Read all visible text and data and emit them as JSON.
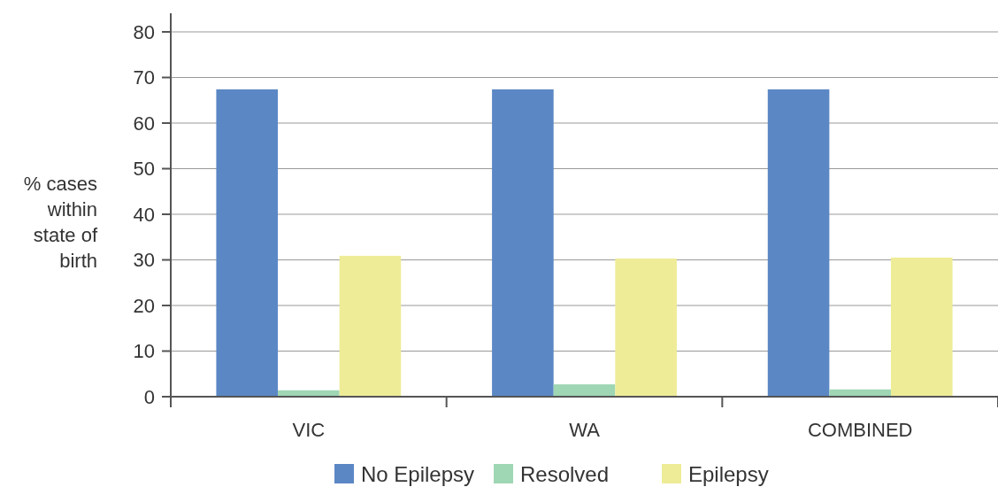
{
  "chart_data": {
    "type": "bar",
    "ylabel": "% cases within state of birth",
    "categories": [
      "VIC",
      "WA",
      "COMBINED"
    ],
    "series": [
      {
        "name": "No Epilepsy",
        "color": "#5b87c5",
        "values": [
          67.4,
          67.4,
          67.4
        ]
      },
      {
        "name": "Resolved",
        "color": "#9fd6b4",
        "values": [
          1.4,
          2.7,
          1.6
        ]
      },
      {
        "name": "Epilepsy",
        "color": "#eeec97",
        "values": [
          30.9,
          30.3,
          30.5
        ]
      }
    ],
    "ylim": [
      0,
      80
    ],
    "yticks": [
      0,
      10,
      20,
      30,
      40,
      50,
      60,
      70,
      80
    ],
    "grid": "y",
    "legend": "bottom"
  }
}
